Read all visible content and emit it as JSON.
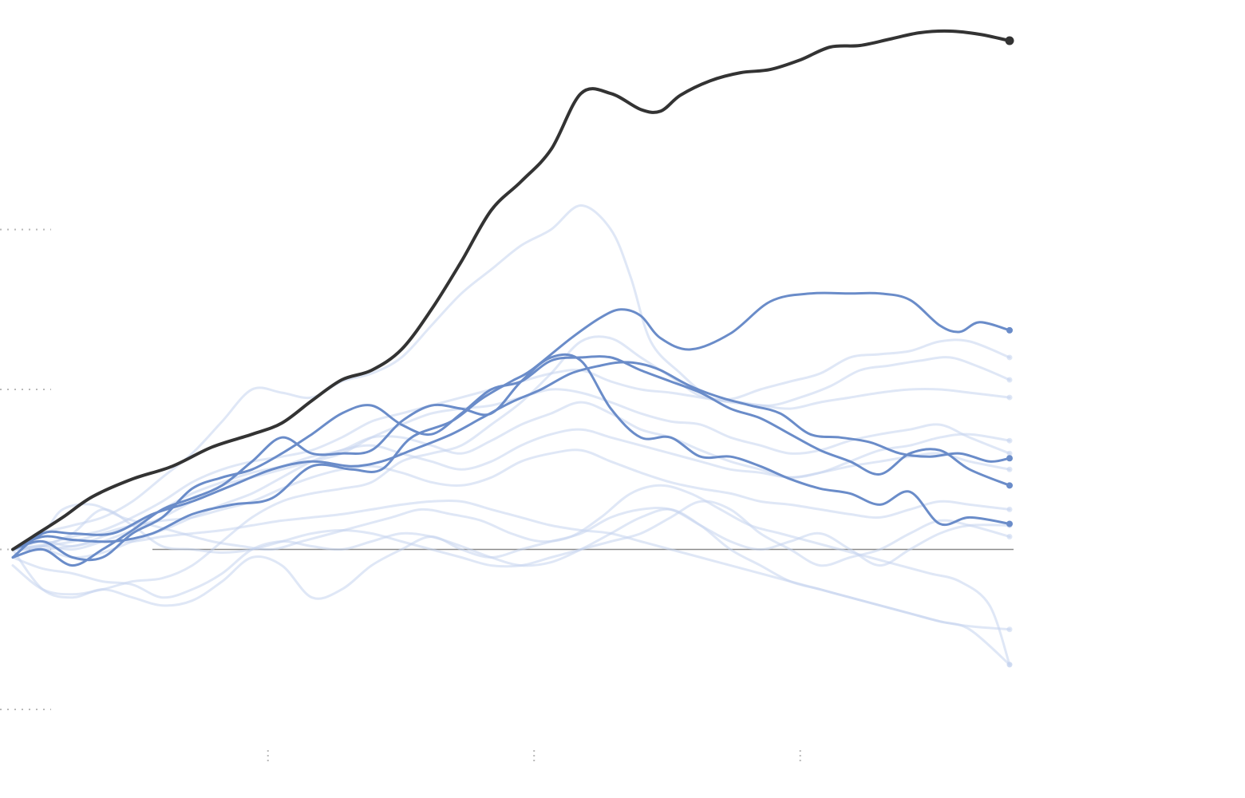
{
  "chart_data": {
    "type": "line",
    "title": "",
    "xlabel": "",
    "ylabel": "",
    "x_tick_labels": [
      "",
      "",
      ""
    ],
    "y_tick_labels": [
      "",
      "",
      "",
      ""
    ],
    "x_range": [
      0,
      100
    ],
    "x_ticks": [
      25.6,
      52.3,
      79.0
    ],
    "y_range": [
      -1.0,
      3.0
    ],
    "y_gridlines": [
      -1.0,
      0.0,
      1.0,
      2.0
    ],
    "baseline_y": 0,
    "grid": true,
    "legend": "none",
    "colors": {
      "highlight": "#333333",
      "selected": "#6a8cc9",
      "background": "#c5d3ef",
      "baseline": "#8a8a8a",
      "grid": "#b9b9b9"
    },
    "series": [
      {
        "role": "highlight",
        "x": [
          0,
          2,
          5,
          8,
          12,
          16,
          20,
          24,
          27,
          30,
          33,
          36,
          39,
          42,
          45,
          48,
          51,
          54,
          57,
          60,
          63,
          65,
          67,
          70,
          73,
          76,
          79,
          82,
          85,
          88,
          91,
          94,
          97,
          100
        ],
        "y": [
          0.0,
          0.08,
          0.2,
          0.33,
          0.44,
          0.52,
          0.64,
          0.72,
          0.79,
          0.93,
          1.06,
          1.12,
          1.25,
          1.5,
          1.8,
          2.12,
          2.3,
          2.5,
          2.85,
          2.85,
          2.75,
          2.74,
          2.84,
          2.93,
          2.98,
          3.0,
          3.06,
          3.14,
          3.15,
          3.19,
          3.23,
          3.24,
          3.22,
          3.18
        ]
      },
      {
        "role": "selected",
        "x": [
          0,
          3,
          6,
          10,
          14,
          18,
          22,
          26,
          30,
          34,
          37,
          40,
          44,
          47,
          50,
          52,
          56,
          59,
          61,
          63,
          65,
          68,
          72,
          76,
          80,
          84,
          87,
          90,
          93,
          95,
          97,
          100
        ],
        "y": [
          0.0,
          0.08,
          0.06,
          0.05,
          0.1,
          0.22,
          0.28,
          0.32,
          0.52,
          0.5,
          0.5,
          0.7,
          0.8,
          0.94,
          1.05,
          1.12,
          1.32,
          1.45,
          1.5,
          1.46,
          1.32,
          1.25,
          1.35,
          1.55,
          1.6,
          1.6,
          1.6,
          1.56,
          1.4,
          1.36,
          1.42,
          1.37
        ]
      },
      {
        "role": "selected",
        "x": [
          0,
          3,
          6,
          10,
          14,
          18,
          22,
          26,
          30,
          34,
          37,
          40,
          44,
          47,
          50,
          53,
          56,
          59,
          61,
          63,
          65,
          68,
          71,
          74,
          77,
          80,
          83,
          86,
          89,
          92,
          95,
          98,
          100
        ],
        "y": [
          -0.05,
          0.1,
          0.1,
          0.1,
          0.22,
          0.3,
          0.4,
          0.5,
          0.55,
          0.52,
          0.55,
          0.62,
          0.72,
          0.82,
          0.92,
          1.0,
          1.1,
          1.15,
          1.17,
          1.16,
          1.12,
          1.02,
          0.95,
          0.9,
          0.85,
          0.72,
          0.7,
          0.67,
          0.6,
          0.58,
          0.6,
          0.55,
          0.57
        ]
      },
      {
        "role": "selected",
        "x": [
          0,
          3,
          6,
          9,
          12,
          15,
          18,
          21,
          24,
          27,
          30,
          33,
          36,
          39,
          42,
          45,
          48,
          51,
          54,
          57,
          60,
          63,
          66,
          69,
          72,
          75,
          78,
          81,
          84,
          87,
          90,
          93,
          96,
          100
        ],
        "y": [
          -0.05,
          0.0,
          -0.1,
          0.0,
          0.12,
          0.25,
          0.32,
          0.4,
          0.55,
          0.7,
          0.6,
          0.6,
          0.62,
          0.8,
          0.9,
          0.88,
          0.85,
          1.05,
          1.2,
          1.18,
          0.88,
          0.7,
          0.7,
          0.58,
          0.58,
          0.52,
          0.44,
          0.38,
          0.35,
          0.28,
          0.36,
          0.16,
          0.2,
          0.16
        ]
      },
      {
        "role": "selected",
        "x": [
          0,
          3,
          6,
          9,
          12,
          15,
          18,
          21,
          24,
          27,
          30,
          33,
          36,
          39,
          42,
          45,
          48,
          51,
          54,
          57,
          60,
          63,
          66,
          69,
          72,
          75,
          78,
          81,
          84,
          87,
          90,
          93,
          96,
          100
        ],
        "y": [
          0.0,
          0.05,
          -0.05,
          -0.05,
          0.1,
          0.2,
          0.38,
          0.45,
          0.5,
          0.6,
          0.72,
          0.85,
          0.9,
          0.78,
          0.72,
          0.85,
          1.0,
          1.05,
          1.18,
          1.2,
          1.2,
          1.12,
          1.05,
          0.98,
          0.88,
          0.82,
          0.72,
          0.62,
          0.55,
          0.47,
          0.6,
          0.62,
          0.5,
          0.4
        ]
      },
      {
        "role": "background",
        "x": [
          0,
          3,
          6,
          9,
          12,
          15,
          18,
          21,
          24,
          27,
          30,
          33,
          36,
          39,
          42,
          45,
          48,
          51,
          54,
          57,
          60,
          62,
          64,
          67,
          70,
          73,
          76,
          79,
          82,
          85,
          88,
          91,
          94,
          97,
          100
        ],
        "y": [
          0.0,
          0.1,
          0.15,
          0.2,
          0.3,
          0.45,
          0.6,
          0.8,
          1.0,
          0.98,
          0.95,
          1.05,
          1.1,
          1.2,
          1.4,
          1.6,
          1.75,
          1.9,
          2.0,
          2.15,
          2.0,
          1.7,
          1.3,
          1.1,
          0.95,
          0.92,
          0.9,
          0.95,
          1.02,
          1.12,
          1.15,
          1.18,
          1.2,
          1.14,
          1.06
        ]
      },
      {
        "role": "background",
        "x": [
          0,
          3,
          6,
          9,
          12,
          15,
          18,
          21,
          24,
          27,
          30,
          33,
          36,
          39,
          42,
          45,
          48,
          51,
          54,
          57,
          60,
          63,
          66,
          69,
          72,
          75,
          78,
          81,
          84,
          87,
          90,
          93,
          96,
          100
        ],
        "y": [
          -0.1,
          -0.25,
          -0.28,
          -0.25,
          -0.2,
          -0.18,
          -0.1,
          0.05,
          0.2,
          0.3,
          0.35,
          0.38,
          0.42,
          0.55,
          0.6,
          0.65,
          0.78,
          0.92,
          1.1,
          1.3,
          1.32,
          1.2,
          1.08,
          0.96,
          0.94,
          1.0,
          1.05,
          1.1,
          1.2,
          1.22,
          1.24,
          1.3,
          1.3,
          1.2
        ]
      },
      {
        "role": "background",
        "x": [
          0,
          3,
          6,
          9,
          12,
          15,
          18,
          21,
          24,
          27,
          30,
          33,
          36,
          39,
          42,
          45,
          48,
          51,
          54,
          57,
          60,
          63,
          66,
          69,
          72,
          75,
          78,
          81,
          84,
          87,
          90,
          93,
          96,
          100
        ],
        "y": [
          0.0,
          0.03,
          0.08,
          0.12,
          0.2,
          0.3,
          0.42,
          0.5,
          0.55,
          0.58,
          0.62,
          0.7,
          0.8,
          0.85,
          0.9,
          0.95,
          1.0,
          1.05,
          1.1,
          1.12,
          1.05,
          1.0,
          0.98,
          0.95,
          0.92,
          0.9,
          0.88,
          0.92,
          0.95,
          0.98,
          1.0,
          1.0,
          0.98,
          0.95
        ]
      },
      {
        "role": "background",
        "x": [
          0,
          3,
          6,
          9,
          12,
          15,
          18,
          21,
          24,
          27,
          30,
          33,
          36,
          39,
          42,
          45,
          48,
          51,
          54,
          57,
          60,
          63,
          66,
          69,
          72,
          75,
          78,
          81,
          84,
          87,
          90,
          93,
          96,
          100
        ],
        "y": [
          0.0,
          0.02,
          0.0,
          0.05,
          0.12,
          0.2,
          0.3,
          0.4,
          0.45,
          0.5,
          0.55,
          0.6,
          0.7,
          0.78,
          0.85,
          0.88,
          0.9,
          0.95,
          1.0,
          0.98,
          0.92,
          0.85,
          0.8,
          0.78,
          0.7,
          0.65,
          0.6,
          0.62,
          0.68,
          0.72,
          0.75,
          0.78,
          0.7,
          0.6
        ]
      },
      {
        "role": "background",
        "x": [
          0,
          3,
          6,
          9,
          12,
          15,
          18,
          21,
          24,
          27,
          30,
          33,
          36,
          39,
          42,
          45,
          48,
          51,
          54,
          57,
          60,
          63,
          66,
          69,
          72,
          75,
          78,
          81,
          84,
          87,
          90,
          93,
          96,
          100
        ],
        "y": [
          0.0,
          0.05,
          0.02,
          0.08,
          0.15,
          0.25,
          0.35,
          0.42,
          0.48,
          0.52,
          0.58,
          0.62,
          0.7,
          0.7,
          0.65,
          0.6,
          0.68,
          0.78,
          0.85,
          0.92,
          0.85,
          0.75,
          0.7,
          0.62,
          0.55,
          0.5,
          0.45,
          0.48,
          0.55,
          0.62,
          0.65,
          0.7,
          0.72,
          0.68
        ]
      },
      {
        "role": "background",
        "x": [
          0,
          3,
          6,
          9,
          12,
          15,
          18,
          21,
          24,
          27,
          30,
          33,
          36,
          39,
          42,
          45,
          48,
          51,
          54,
          57,
          60,
          63,
          66,
          69,
          72,
          75,
          78,
          81,
          84,
          87,
          90,
          93,
          96,
          100
        ],
        "y": [
          0.0,
          0.0,
          -0.05,
          -0.02,
          0.05,
          0.12,
          0.2,
          0.28,
          0.35,
          0.45,
          0.55,
          0.62,
          0.65,
          0.6,
          0.55,
          0.5,
          0.55,
          0.65,
          0.72,
          0.75,
          0.7,
          0.65,
          0.6,
          0.55,
          0.5,
          0.48,
          0.45,
          0.48,
          0.52,
          0.55,
          0.58,
          0.6,
          0.55,
          0.5
        ]
      },
      {
        "role": "background",
        "x": [
          0,
          3,
          6,
          9,
          12,
          15,
          18,
          21,
          24,
          27,
          30,
          33,
          36,
          39,
          42,
          45,
          48,
          51,
          54,
          57,
          60,
          63,
          66,
          69,
          72,
          75,
          78,
          81,
          84,
          87,
          90,
          93,
          96,
          100
        ],
        "y": [
          0.0,
          0.02,
          0.05,
          0.1,
          0.15,
          0.18,
          0.2,
          0.25,
          0.3,
          0.38,
          0.45,
          0.5,
          0.52,
          0.48,
          0.42,
          0.4,
          0.45,
          0.55,
          0.6,
          0.62,
          0.55,
          0.48,
          0.42,
          0.38,
          0.35,
          0.3,
          0.28,
          0.25,
          0.22,
          0.2,
          0.25,
          0.3,
          0.28,
          0.25
        ]
      },
      {
        "role": "background",
        "x": [
          0,
          3,
          5,
          8,
          11,
          14,
          17,
          20,
          23,
          26,
          29,
          32,
          35,
          38,
          41,
          44,
          47,
          50,
          53,
          56,
          59,
          62,
          65,
          68,
          71,
          74,
          77,
          80,
          83,
          86,
          89,
          92,
          95,
          98,
          100
        ],
        "y": [
          0.0,
          0.1,
          0.25,
          0.28,
          0.2,
          0.15,
          0.1,
          0.05,
          0.02,
          0.0,
          0.05,
          0.1,
          0.15,
          0.2,
          0.25,
          0.22,
          0.18,
          0.1,
          0.05,
          0.08,
          0.2,
          0.35,
          0.4,
          0.35,
          0.25,
          0.15,
          0.1,
          0.05,
          0.0,
          -0.05,
          -0.1,
          -0.15,
          -0.2,
          -0.35,
          -0.72
        ]
      },
      {
        "role": "background",
        "x": [
          0,
          3,
          6,
          9,
          12,
          15,
          18,
          21,
          24,
          27,
          30,
          33,
          36,
          39,
          42,
          45,
          48,
          51,
          54,
          57,
          60,
          63,
          66,
          69,
          72,
          75,
          78,
          81,
          84,
          87,
          90,
          93,
          96,
          100
        ],
        "y": [
          -0.05,
          -0.12,
          -0.15,
          -0.2,
          -0.22,
          -0.3,
          -0.25,
          -0.15,
          0.0,
          0.05,
          0.02,
          0.0,
          0.05,
          0.1,
          0.08,
          0.02,
          -0.05,
          -0.1,
          -0.08,
          0.0,
          0.1,
          0.2,
          0.25,
          0.15,
          0.0,
          -0.1,
          -0.2,
          -0.25,
          -0.3,
          -0.35,
          -0.4,
          -0.45,
          -0.48,
          -0.5
        ]
      },
      {
        "role": "background",
        "x": [
          0,
          3,
          6,
          9,
          12,
          15,
          18,
          21,
          24,
          27,
          30,
          33,
          36,
          39,
          42,
          45,
          48,
          51,
          54,
          57,
          60,
          63,
          66,
          69,
          72,
          75,
          78,
          81,
          84,
          87,
          90,
          93,
          96,
          100
        ],
        "y": [
          0.0,
          -0.25,
          -0.3,
          -0.25,
          -0.3,
          -0.35,
          -0.32,
          -0.2,
          -0.05,
          -0.1,
          -0.3,
          -0.25,
          -0.1,
          0.0,
          0.08,
          0.0,
          -0.05,
          0.0,
          0.05,
          0.1,
          0.2,
          0.25,
          0.25,
          0.15,
          0.05,
          0.0,
          0.05,
          0.1,
          0.0,
          -0.1,
          0.0,
          0.1,
          0.15,
          0.15
        ]
      },
      {
        "role": "background",
        "x": [
          0,
          3,
          6,
          9,
          12,
          15,
          18,
          21,
          24,
          27,
          30,
          33,
          36,
          39,
          42,
          45,
          48,
          51,
          54,
          57,
          60,
          63,
          66,
          69,
          72,
          75,
          78,
          81,
          84,
          87,
          90,
          93,
          96,
          100
        ],
        "y": [
          -0.05,
          0.02,
          0.1,
          0.25,
          0.15,
          0.02,
          0.0,
          -0.02,
          0.0,
          0.05,
          0.1,
          0.12,
          0.1,
          0.05,
          0.0,
          -0.05,
          -0.1,
          -0.1,
          -0.05,
          0.0,
          0.05,
          0.1,
          0.2,
          0.3,
          0.25,
          0.1,
          0.0,
          -0.1,
          -0.05,
          0.0,
          0.1,
          0.18,
          0.15,
          0.08
        ]
      },
      {
        "role": "background",
        "x": [
          0,
          3,
          6,
          9,
          12,
          15,
          18,
          21,
          24,
          27,
          30,
          33,
          36,
          39,
          42,
          45,
          48,
          51,
          54,
          57,
          60,
          63,
          66,
          69,
          72,
          75,
          78,
          81,
          84,
          87,
          90,
          93,
          96,
          100
        ],
        "y": [
          0.0,
          0.0,
          0.02,
          0.05,
          0.05,
          0.08,
          0.1,
          0.12,
          0.15,
          0.18,
          0.2,
          0.22,
          0.25,
          0.28,
          0.3,
          0.3,
          0.25,
          0.2,
          0.15,
          0.12,
          0.1,
          0.05,
          0.0,
          -0.05,
          -0.1,
          -0.15,
          -0.2,
          -0.25,
          -0.3,
          -0.35,
          -0.4,
          -0.45,
          -0.5,
          -0.72
        ]
      }
    ]
  }
}
